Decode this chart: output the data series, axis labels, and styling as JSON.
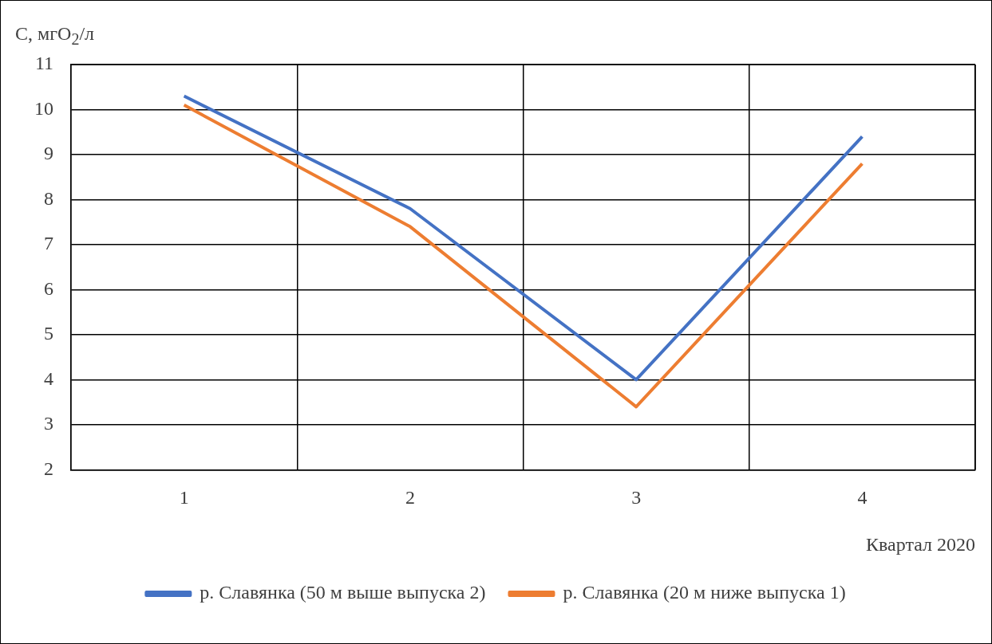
{
  "chart_data": {
    "type": "line",
    "ylabel": "C, мгО$_{2}$/л",
    "xlabel": "Квартал 2020",
    "categories": [
      "1",
      "2",
      "3",
      "4"
    ],
    "series": [
      {
        "name": "р. Славянка (50 м выше выпуска 2)",
        "color": "#4472c4",
        "values": [
          10.3,
          7.8,
          4.0,
          9.4
        ]
      },
      {
        "name": "р. Славянка (20 м ниже выпуска 1)",
        "color": "#ed7d31",
        "values": [
          10.1,
          7.4,
          3.4,
          8.8
        ]
      }
    ],
    "ylim": [
      2,
      11
    ],
    "yticks": [
      2,
      3,
      4,
      5,
      6,
      7,
      8,
      9,
      10,
      11
    ],
    "grid": true,
    "legend": "bottom",
    "marker": "none",
    "line_style": "solid"
  }
}
